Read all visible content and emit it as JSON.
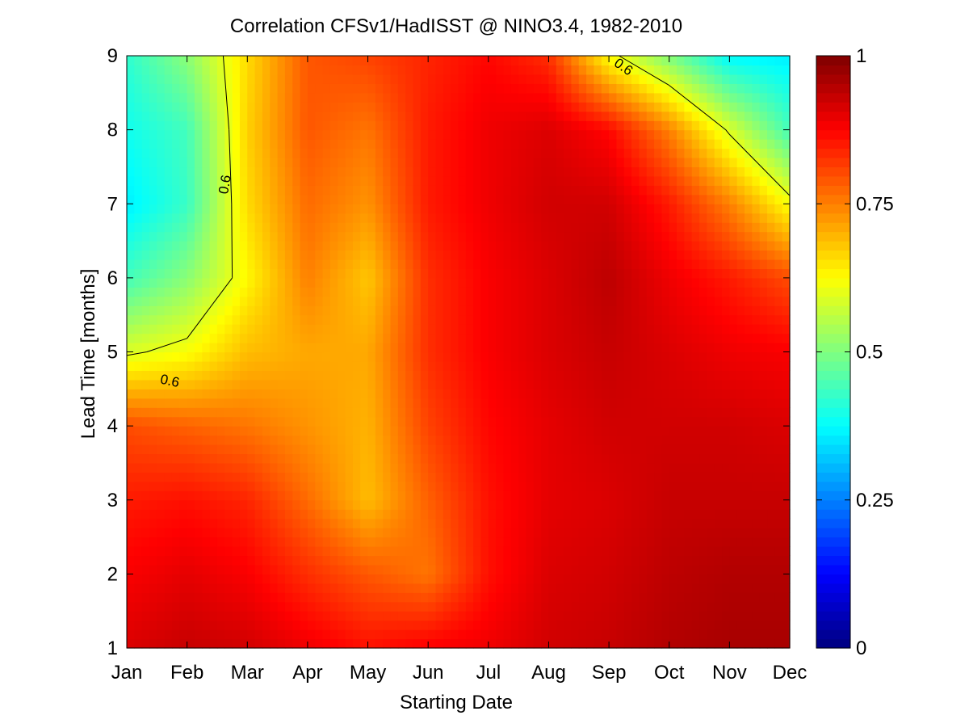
{
  "chart_data": {
    "type": "heatmap",
    "title": "Correlation CFSv1/HadISST @ NINO3.4, 1982-2010",
    "xlabel": "Starting Date",
    "ylabel": "Lead Time [months]",
    "x_categories": [
      "Jan",
      "Feb",
      "Mar",
      "Apr",
      "May",
      "Jun",
      "Jul",
      "Aug",
      "Sep",
      "Oct",
      "Nov",
      "Dec"
    ],
    "y_ticks": [
      1,
      2,
      3,
      4,
      5,
      6,
      7,
      8,
      9
    ],
    "ylim": [
      1,
      9
    ],
    "color_scale": {
      "min": 0,
      "max": 1,
      "colormap": "jet",
      "ticks": [
        0,
        0.25,
        0.5,
        0.75,
        1
      ],
      "tick_labels": [
        "0",
        "0.25",
        "0.5",
        "0.75",
        "1"
      ]
    },
    "contour": {
      "level": 0.6,
      "label": "0.6"
    },
    "values": [
      [
        0.91,
        0.93,
        0.92,
        0.89,
        0.86,
        0.88,
        0.89,
        0.92,
        0.93,
        0.95,
        0.96,
        0.96
      ],
      [
        0.88,
        0.9,
        0.88,
        0.83,
        0.79,
        0.76,
        0.86,
        0.91,
        0.92,
        0.94,
        0.95,
        0.95
      ],
      [
        0.85,
        0.86,
        0.84,
        0.77,
        0.69,
        0.78,
        0.86,
        0.9,
        0.91,
        0.93,
        0.93,
        0.93
      ],
      [
        0.8,
        0.78,
        0.76,
        0.73,
        0.7,
        0.81,
        0.87,
        0.9,
        0.92,
        0.92,
        0.92,
        0.91
      ],
      [
        0.59,
        0.62,
        0.69,
        0.71,
        0.71,
        0.83,
        0.88,
        0.91,
        0.93,
        0.91,
        0.89,
        0.88
      ],
      [
        0.44,
        0.51,
        0.63,
        0.75,
        0.68,
        0.83,
        0.88,
        0.91,
        0.94,
        0.89,
        0.85,
        0.8
      ],
      [
        0.36,
        0.43,
        0.66,
        0.77,
        0.73,
        0.85,
        0.89,
        0.92,
        0.92,
        0.85,
        0.75,
        0.62
      ],
      [
        0.39,
        0.44,
        0.67,
        0.79,
        0.76,
        0.85,
        0.89,
        0.91,
        0.87,
        0.75,
        0.59,
        0.44
      ],
      [
        0.42,
        0.51,
        0.66,
        0.79,
        0.81,
        0.84,
        0.87,
        0.83,
        0.62,
        0.5,
        0.37,
        0.36
      ]
    ]
  }
}
